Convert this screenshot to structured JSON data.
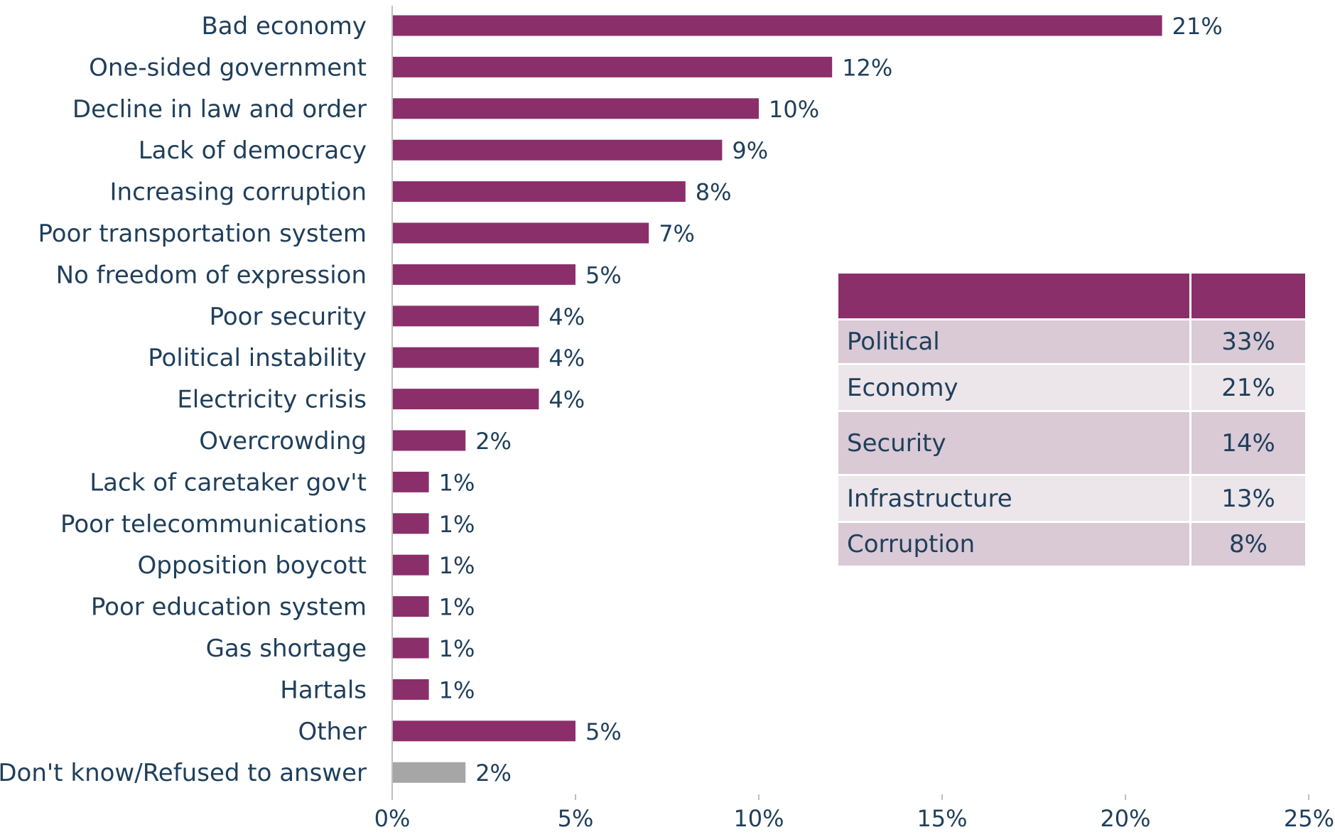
{
  "chart_data": {
    "type": "bar",
    "orientation": "horizontal",
    "categories": [
      "Bad economy",
      "One-sided government",
      "Decline in law and order",
      "Lack of democracy",
      "Increasing corruption",
      "Poor transportation system",
      "No freedom of expression",
      "Poor security",
      "Political instability",
      "Electricity crisis",
      "Overcrowding",
      "Lack of caretaker gov't",
      "Poor telecommunications",
      "Opposition boycott",
      "Poor education system",
      "Gas shortage",
      "Hartals",
      "Other",
      "Don't know/Refused to answer"
    ],
    "values": [
      21,
      12,
      10,
      9,
      8,
      7,
      5,
      4,
      4,
      4,
      2,
      1,
      1,
      1,
      1,
      1,
      1,
      5,
      2
    ],
    "value_labels": [
      "21%",
      "12%",
      "10%",
      "9%",
      "8%",
      "7%",
      "5%",
      "4%",
      "4%",
      "4%",
      "2%",
      "1%",
      "1%",
      "1%",
      "1%",
      "1%",
      "1%",
      "5%",
      "2%"
    ],
    "xlim": [
      0,
      25
    ],
    "xticks": [
      0,
      5,
      10,
      15,
      20,
      25
    ],
    "xtick_labels": [
      "0%",
      "5%",
      "10%",
      "15%",
      "20%",
      "25%"
    ],
    "title": "",
    "xlabel": "",
    "ylabel": "",
    "grid": false,
    "legend": "none",
    "colors": {
      "bar": "#8b2f6b",
      "bar_highlight": "#a6a6a6",
      "text": "#1f3f5b",
      "axis": "#bfbfbf"
    },
    "highlight_index": 18
  },
  "summary_table": {
    "header": [
      "",
      ""
    ],
    "rows": [
      {
        "category": "Political",
        "value": "33%"
      },
      {
        "category": "Economy",
        "value": "21%"
      },
      {
        "category": "Security",
        "value": "14%"
      },
      {
        "category": "Infrastructure",
        "value": "13%"
      },
      {
        "category": "Corruption",
        "value": "8%"
      }
    ]
  }
}
